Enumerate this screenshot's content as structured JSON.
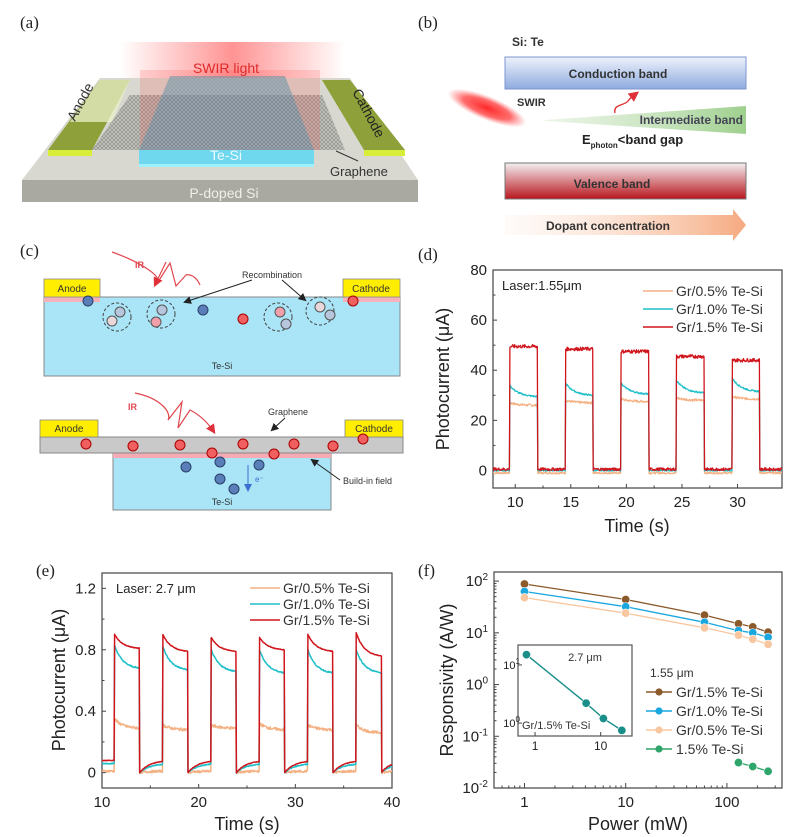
{
  "panels": {
    "a": {
      "label": "(a)",
      "light_label": "SWIR light",
      "anode": "Anode",
      "cathode": "Cathode",
      "channel": "Te-Si",
      "graphene": "Graphene",
      "substrate": "P-doped Si"
    },
    "b": {
      "label": "(b)",
      "material": "Si: Te",
      "conduction_band": "Conduction band",
      "valence_band": "Valence band",
      "intermediate_band": "Intermediate band",
      "swir": "SWIR",
      "ephoton_main": "E",
      "ephoton_sub": "photon",
      "ephoton_rest": "<band gap",
      "dopant_arrow": "Dopant concentration"
    },
    "c": {
      "label": "(c)",
      "top": {
        "ir": "IR",
        "anode": "Anode",
        "cathode": "Cathode",
        "recombination": "Recombination",
        "body": "Te-Si"
      },
      "bottom": {
        "ir": "IR",
        "anode": "Anode",
        "cathode": "Cathode",
        "graphene": "Graphene",
        "build_in_field": "Build-in field",
        "body": "Te-Si",
        "electron": "e⁻"
      }
    }
  },
  "colors": {
    "gr05": "#f4b183",
    "gr10": "#1fbfc8",
    "gr15": "#d0151c",
    "f_gr15": "#8b5a2b",
    "f_gr10": "#1aa7e0",
    "f_gr05": "#f8c7a0",
    "f_te15": "#2ea56b",
    "inset": "#1a8f8a"
  },
  "chart_data": [
    {
      "id": "d",
      "panel_label": "(d)",
      "type": "line",
      "title": "",
      "annotation": "Laser:1.55μm",
      "xlabel": "Time (s)",
      "ylabel": "Photocurrent (μA)",
      "xlim": [
        8,
        34
      ],
      "ylim": [
        -7,
        80
      ],
      "xticks": [
        10,
        15,
        20,
        25,
        30
      ],
      "yticks": [
        0,
        20,
        40,
        60,
        80
      ],
      "legend_position": "top-right",
      "pulses": {
        "on_times": [
          9.5,
          14.5,
          19.5,
          24.5,
          29.5
        ],
        "off_times": [
          12.0,
          17.0,
          22.0,
          27.0,
          32.0
        ]
      },
      "series": [
        {
          "name": "Gr/0.5% Te-Si",
          "color_key": "gr05",
          "peak": [
            27,
            28,
            28.5,
            29,
            29.5
          ],
          "plateau_end": [
            26,
            27,
            27.5,
            28,
            28.5
          ],
          "off_level": -1
        },
        {
          "name": "Gr/1.0% Te-Si",
          "color_key": "gr10",
          "peak": [
            34,
            35,
            35,
            36,
            37
          ],
          "plateau_end": [
            29.5,
            30,
            30.5,
            31,
            31.5
          ],
          "off_level": 0
        },
        {
          "name": "Gr/1.5% Te-Si",
          "color_key": "gr15",
          "peak": [
            49.5,
            48.5,
            47.5,
            45.5,
            44
          ],
          "plateau_end": [
            49.5,
            48.5,
            47.5,
            45.5,
            44
          ],
          "off_level": 0.5
        }
      ]
    },
    {
      "id": "e",
      "panel_label": "(e)",
      "type": "line",
      "title": "",
      "annotation": "Laser: 2.7 μm",
      "xlabel": "Time (s)",
      "ylabel": "Photocurrent (μA)",
      "xlim": [
        10,
        40
      ],
      "ylim": [
        -0.1,
        1.3
      ],
      "xticks": [
        10,
        20,
        30,
        40
      ],
      "yticks": [
        0,
        0.4,
        0.8,
        1.2
      ],
      "ytick_labels": [
        "0",
        "0.4",
        "0.8",
        "1.2"
      ],
      "legend_position": "top-right",
      "pulses": {
        "on_times": [
          11.3,
          16.3,
          21.3,
          26.3,
          31.3,
          36.3
        ],
        "off_times": [
          13.9,
          18.9,
          23.9,
          28.9,
          33.9,
          38.9
        ]
      },
      "series": [
        {
          "name": "Gr/0.5% Te-Si",
          "color_key": "gr05",
          "peak": [
            0.35,
            0.31,
            0.31,
            0.32,
            0.31,
            0.31
          ],
          "plateau_end": [
            0.29,
            0.28,
            0.29,
            0.28,
            0.28,
            0.26
          ],
          "off_rise_to": 0.01
        },
        {
          "name": "Gr/1.0% Te-Si",
          "color_key": "gr10",
          "peak": [
            0.83,
            0.82,
            0.8,
            0.8,
            0.8,
            0.8
          ],
          "plateau_end": [
            0.68,
            0.67,
            0.66,
            0.65,
            0.65,
            0.65
          ],
          "off_rise_to": 0.06
        },
        {
          "name": "Gr/1.5% Te-Si",
          "color_key": "gr15",
          "peak": [
            0.9,
            0.9,
            0.88,
            0.88,
            0.9,
            0.91
          ],
          "plateau_end": [
            0.81,
            0.79,
            0.79,
            0.8,
            0.79,
            0.76
          ],
          "off_rise_to": 0.08
        }
      ]
    },
    {
      "id": "f",
      "panel_label": "(f)",
      "type": "scatter",
      "xscale": "log",
      "yscale": "log",
      "xlabel": "Power (mW)",
      "ylabel": "Responsivity (A/W)",
      "xlim": [
        0.5,
        350
      ],
      "ylim": [
        0.01,
        150
      ],
      "xticks": [
        1,
        10,
        100
      ],
      "xtick_labels": [
        "1",
        "10",
        "100"
      ],
      "yticks": [
        0.01,
        0.1,
        1,
        10,
        100
      ],
      "ytick_labels": [
        [
          "10",
          "-2"
        ],
        [
          "10",
          "-1"
        ],
        [
          "10",
          "0"
        ],
        [
          "10",
          "1"
        ],
        [
          "10",
          "2"
        ]
      ],
      "legend_title": "1.55 μm",
      "legend_position": "center-right",
      "series": [
        {
          "name": "Gr/1.5% Te-Si",
          "color_key": "f_gr15",
          "x": [
            1,
            10,
            60,
            130,
            180,
            255
          ],
          "y": [
            88,
            44,
            22,
            15,
            13,
            10.3
          ]
        },
        {
          "name": "Gr/1.0% Te-Si",
          "color_key": "f_gr10",
          "x": [
            1,
            10,
            60,
            130,
            180,
            255
          ],
          "y": [
            63,
            32,
            16,
            11,
            10,
            8.2
          ]
        },
        {
          "name": "Gr/0.5% Te-Si",
          "color_key": "f_gr05",
          "x": [
            1,
            10,
            60,
            130,
            180,
            255
          ],
          "y": [
            48,
            24,
            12.5,
            9,
            7.5,
            6
          ]
        },
        {
          "name": "1.5% Te-Si",
          "color_key": "f_te15",
          "x": [
            130,
            180,
            255
          ],
          "y": [
            0.031,
            0.026,
            0.021
          ]
        }
      ],
      "inset": {
        "annotation": "2.7 μm",
        "series_label": "Gr/1.5% Te-Si",
        "xscale": "log",
        "yscale": "log",
        "xlim": [
          0.55,
          30
        ],
        "ylim": [
          0.6,
          22
        ],
        "xticks": [
          1,
          10
        ],
        "xtick_labels": [
          "1",
          "10"
        ],
        "yticks": [
          1,
          10
        ],
        "ytick_labels": [
          [
            "10",
            "0"
          ],
          [
            "10",
            "1"
          ]
        ],
        "x": [
          0.74,
          6,
          11,
          21
        ],
        "y": [
          15,
          2.2,
          1.2,
          0.75
        ]
      }
    }
  ]
}
